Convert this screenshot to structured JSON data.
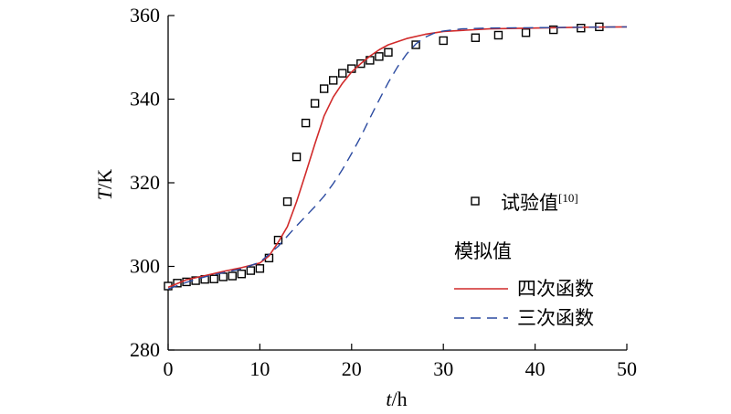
{
  "chart_data": {
    "type": "line",
    "xlabel": {
      "italic": "t",
      "rest": "/h"
    },
    "ylabel": {
      "italic": "T",
      "rest": "/K"
    },
    "xlim": [
      0,
      50
    ],
    "ylim": [
      280,
      360
    ],
    "xticks": [
      0,
      10,
      20,
      30,
      40,
      50
    ],
    "yticks": [
      280,
      300,
      320,
      340,
      360
    ],
    "grid": false,
    "legend": {
      "placement": "right",
      "observed_label": "试验值",
      "observed_ref": "[10]",
      "group_title": "模拟值",
      "quartic_label": "四次函数",
      "cubic_label": "三次函数"
    },
    "series": [
      {
        "name": "试验值",
        "style": "markers",
        "marker": "hollow-square",
        "color": "#000000",
        "x": [
          0,
          1,
          2,
          3,
          4,
          5,
          6,
          7,
          8,
          9,
          10,
          11,
          12,
          13,
          14,
          15,
          16,
          17,
          18,
          19,
          20,
          21,
          22,
          23,
          24,
          27,
          30,
          33.5,
          36,
          39,
          42,
          45,
          47
        ],
        "y": [
          295.3,
          296.0,
          296.3,
          296.6,
          296.9,
          297.0,
          297.5,
          297.7,
          298.2,
          299.0,
          299.5,
          302.0,
          306.3,
          315.5,
          326.2,
          334.3,
          339.0,
          342.5,
          344.5,
          346.2,
          347.3,
          348.5,
          349.3,
          350.2,
          351.2,
          353.0,
          354.0,
          354.7,
          355.3,
          355.9,
          356.6,
          357.0,
          357.3
        ]
      },
      {
        "name": "四次函数",
        "style": "solid",
        "color": "#d12a2a",
        "x": [
          0,
          2,
          4,
          6,
          8,
          10,
          11,
          12,
          13,
          14,
          15,
          16,
          17,
          18,
          19,
          20,
          21,
          22,
          23,
          24,
          26,
          28,
          30,
          35,
          40,
          45,
          50
        ],
        "y": [
          295.0,
          296.8,
          297.8,
          298.8,
          299.7,
          300.8,
          302.5,
          305.8,
          309.5,
          315.5,
          322.3,
          329.3,
          336.0,
          340.5,
          343.8,
          346.5,
          348.5,
          350.3,
          351.8,
          353.0,
          354.5,
          355.5,
          356.2,
          356.8,
          357.0,
          357.2,
          357.3
        ]
      },
      {
        "name": "三次函数",
        "style": "dashed",
        "color": "#2b4aa0",
        "x": [
          0,
          2,
          4,
          6,
          8,
          10,
          12,
          14,
          16,
          17,
          18,
          19,
          20,
          21,
          22,
          23,
          24,
          25,
          26,
          27,
          28,
          29,
          30,
          32,
          35,
          40,
          45,
          50
        ],
        "y": [
          294.6,
          296.2,
          297.5,
          298.5,
          299.4,
          301.0,
          304.8,
          309.7,
          314.3,
          316.8,
          319.8,
          323.2,
          327.0,
          331.0,
          335.5,
          339.8,
          344.0,
          347.7,
          350.8,
          353.2,
          354.8,
          355.8,
          356.3,
          356.8,
          357.0,
          357.1,
          357.2,
          357.3
        ]
      }
    ]
  }
}
